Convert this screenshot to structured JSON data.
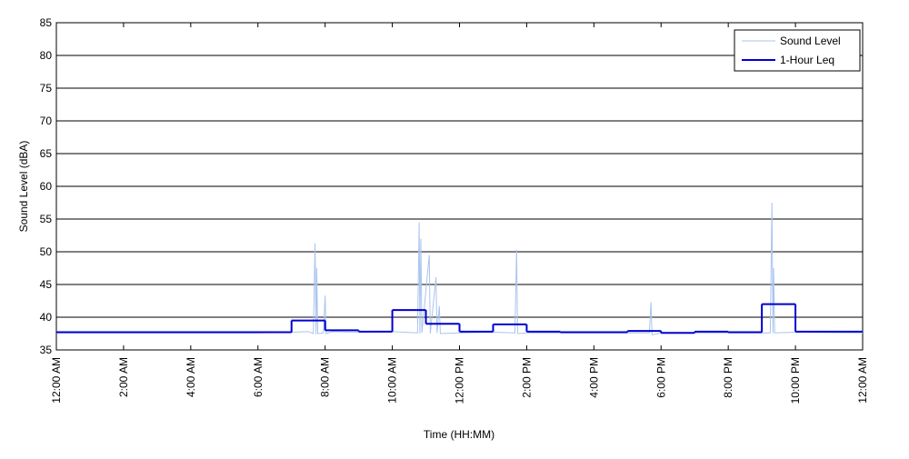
{
  "chart_data": {
    "type": "line",
    "xlabel": "Time (HH:MM)",
    "ylabel": "Sound Level (dBA)",
    "xlim": [
      0,
      24
    ],
    "ylim": [
      35,
      85
    ],
    "xticks": [
      {
        "value": 0,
        "label": "12:00 AM"
      },
      {
        "value": 2,
        "label": "2:00 AM"
      },
      {
        "value": 4,
        "label": "4:00 AM"
      },
      {
        "value": 6,
        "label": "6:00 AM"
      },
      {
        "value": 8,
        "label": "8:00 AM"
      },
      {
        "value": 10,
        "label": "10:00 AM"
      },
      {
        "value": 12,
        "label": "12:00 PM"
      },
      {
        "value": 14,
        "label": "2:00 PM"
      },
      {
        "value": 16,
        "label": "4:00 PM"
      },
      {
        "value": 18,
        "label": "6:00 PM"
      },
      {
        "value": 20,
        "label": "8:00 PM"
      },
      {
        "value": 22,
        "label": "10:00 PM"
      },
      {
        "value": 24,
        "label": "12:00 AM"
      }
    ],
    "yticks": [
      35,
      40,
      45,
      50,
      55,
      60,
      65,
      70,
      75,
      80,
      85
    ],
    "grid": true,
    "legend": "upper right",
    "series": [
      {
        "name": "Sound Level",
        "color": "#a9c4ee",
        "style": "line",
        "x": [
          0,
          2,
          4,
          6,
          7,
          7.5,
          7.65,
          7.7,
          7.73,
          7.75,
          7.78,
          7.95,
          8.0,
          8.03,
          8.2,
          9,
          10,
          10.75,
          10.8,
          10.82,
          10.85,
          10.88,
          11.1,
          11.13,
          11.3,
          11.33,
          11.4,
          11.43,
          12,
          13,
          13.65,
          13.7,
          13.73,
          14,
          16,
          17.65,
          17.7,
          17.73,
          18,
          20,
          21.25,
          21.3,
          21.33,
          21.35,
          21.38,
          22,
          24
        ],
        "values": [
          37.6,
          37.6,
          37.6,
          37.6,
          37.7,
          37.8,
          37.5,
          51.3,
          37.4,
          47.5,
          37.5,
          37.6,
          43.3,
          37.5,
          37.8,
          37.7,
          37.8,
          37.6,
          54.5,
          37.5,
          52.0,
          37.6,
          49.5,
          37.5,
          46.1,
          37.6,
          41.7,
          37.5,
          37.6,
          37.7,
          37.6,
          50.3,
          37.5,
          37.6,
          37.6,
          37.6,
          42.3,
          37.3,
          37.6,
          37.6,
          37.6,
          57.5,
          37.6,
          47.5,
          37.6,
          37.7,
          37.6
        ]
      },
      {
        "name": "1-Hour Leq",
        "color": "#0000d0",
        "style": "step",
        "x": [
          0,
          7,
          8,
          9,
          10,
          11,
          12,
          13,
          14,
          15,
          17,
          18,
          19,
          20,
          21,
          22
        ],
        "values": [
          37.7,
          39.5,
          38.0,
          37.8,
          41.1,
          39.0,
          37.8,
          38.9,
          37.8,
          37.7,
          37.9,
          37.6,
          37.8,
          37.7,
          42.0,
          37.8
        ]
      }
    ]
  }
}
